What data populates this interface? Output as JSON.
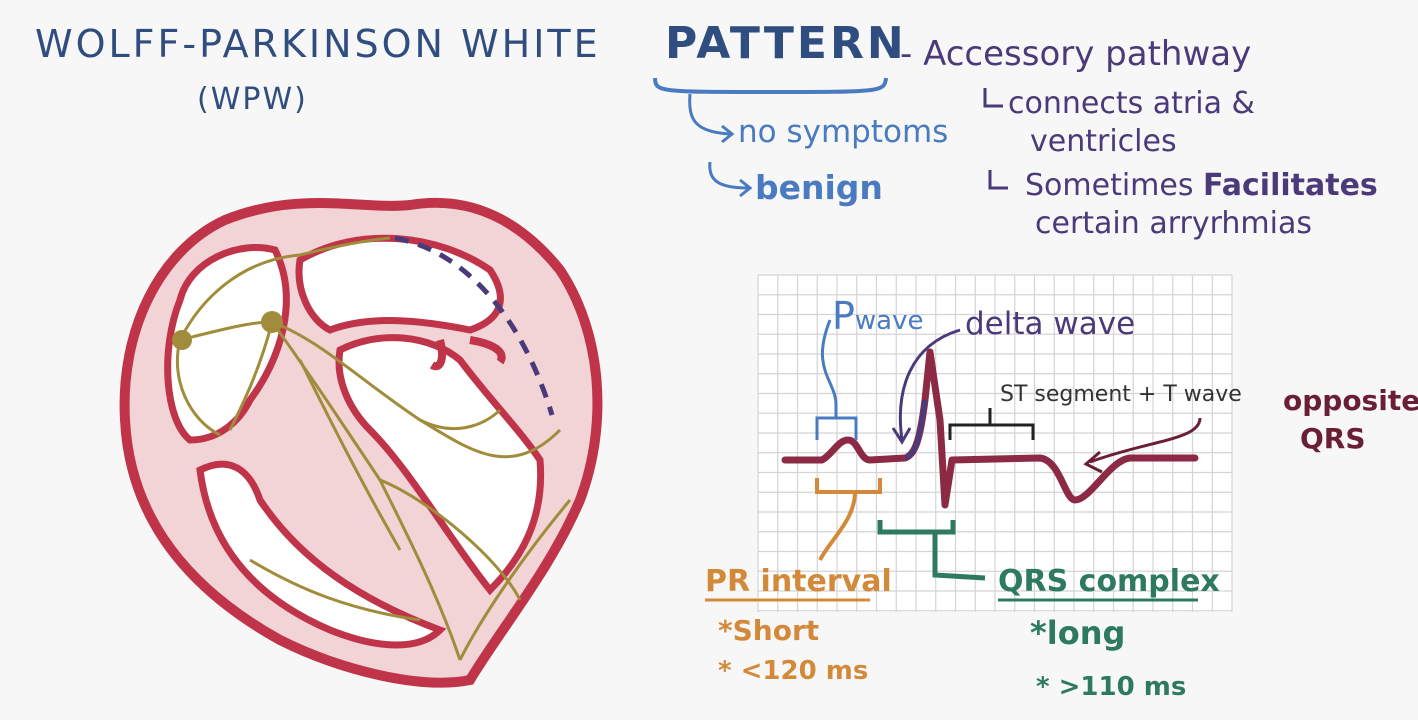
{
  "title": {
    "main": "WOLFF-PARKINSON WHITE",
    "abbr": "(WPW)",
    "pattern": "PATTERN",
    "accessory": "- Accessory pathway"
  },
  "pattern_notes": [
    "no symptoms",
    "benign"
  ],
  "accessory_notes": {
    "line1": "connects atria &",
    "line2": "ventricles",
    "line3a": "Sometimes ",
    "line3b": "Facilitates",
    "line4": "certain arryrhmias"
  },
  "ecg_labels": {
    "p_wave_p": "P",
    "p_wave_rest": "wave",
    "delta_wave": "delta wave",
    "st_segment": "ST segment + T wave",
    "opposite_1": "opposite",
    "opposite_2": "QRS",
    "pr_interval": "PR interval",
    "pr_short": "*Short",
    "pr_ms": "* <120 ms",
    "qrs_complex": "QRS complex",
    "qrs_long": "*long",
    "qrs_ms": "* >110 ms"
  },
  "colors": {
    "heart_outline": "#c0344a",
    "heart_fill": "#f2d3d6",
    "conduction": "#a08c3a",
    "accessory": "#4b3a7a",
    "ecg_trace": "#8c2a45",
    "grid": "#d4d4d4"
  }
}
